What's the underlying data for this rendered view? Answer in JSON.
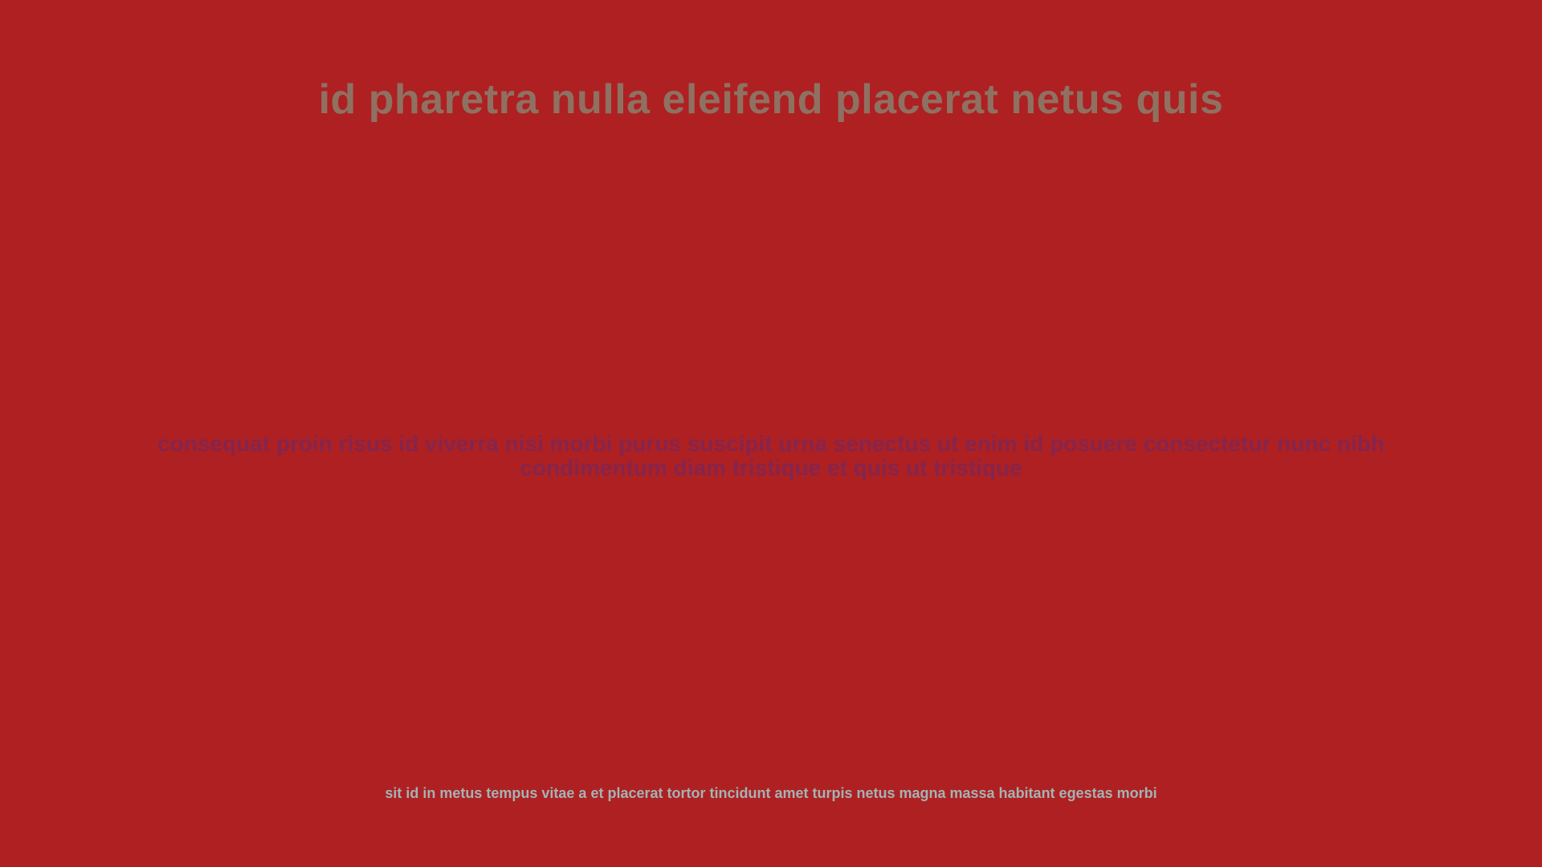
{
  "slide": {
    "title": "id pharetra nulla eleifend placerat netus quis",
    "body": "consequat proin risus id viverra nisi morbi purus suscipit urna senectus ut enim id posuere consectetur nunc nibh condimentum diam tristique et quis ut tristique",
    "footer": "sit id in metus tempus vitae a et placerat tortor tincidunt amet turpis netus magna massa habitant egestas morbi"
  },
  "colors": {
    "background": "#ae2022",
    "title": "#8f7162",
    "body": "#85254e",
    "footer": "#a3b3b3"
  }
}
